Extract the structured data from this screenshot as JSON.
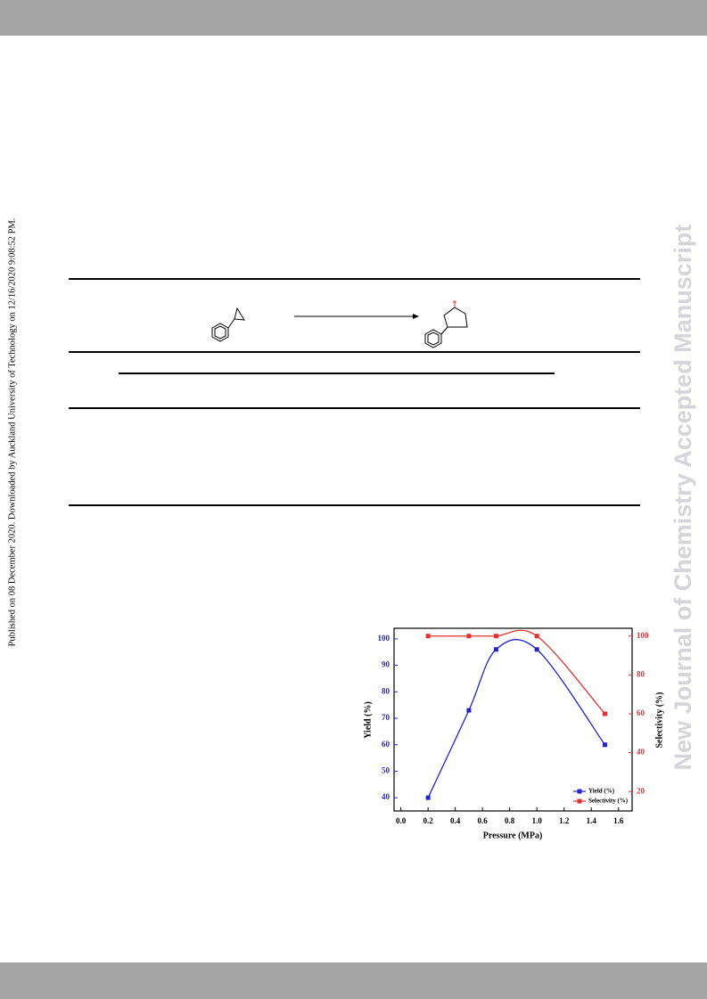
{
  "side_note": "Published on 08 December 2020. Downloaded by Auckland University of Technology on 12/16/2020 9:08:52 PM.",
  "watermark": "New Journal of Chemistry Accepted Manuscript",
  "chart_data": {
    "type": "line",
    "xlabel": "Pressure (MPa)",
    "ylabel": "Yield (%)",
    "y2label": "Selectivity (%)",
    "x": [
      0.2,
      0.5,
      0.7,
      1.0,
      1.5
    ],
    "series": [
      {
        "name": "Yield (%)",
        "color": "#2424c8",
        "values": [
          40,
          73,
          96,
          96,
          60
        ]
      },
      {
        "name": "Selectivity (%)",
        "color": "#e03232",
        "values": [
          100,
          100,
          100,
          100,
          60
        ],
        "axis": "y2"
      }
    ],
    "xlim": [
      -0.05,
      1.7
    ],
    "xticks": [
      {
        "value": 0,
        "label": "0.0"
      },
      0.2,
      0.4,
      0.6,
      0.8,
      {
        "value": 1,
        "label": "1.0"
      },
      1.2,
      1.4,
      1.6
    ],
    "ylim": [
      35,
      104
    ],
    "yticks": [
      40,
      50,
      60,
      70,
      80,
      90,
      100
    ],
    "y2lim": [
      10,
      104
    ],
    "y2ticks": [
      20,
      40,
      60,
      80,
      100
    ],
    "legend": "lower right"
  }
}
